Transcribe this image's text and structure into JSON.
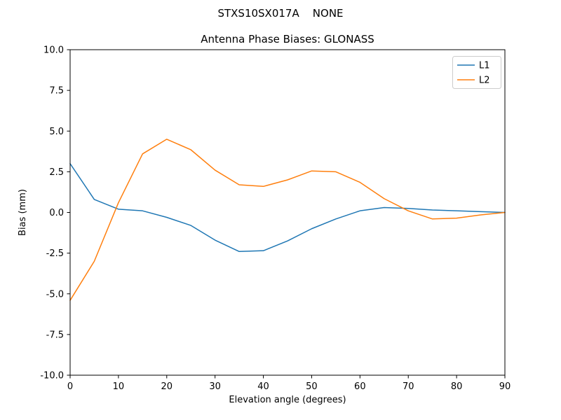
{
  "chart_data": {
    "type": "line",
    "suptitle": "STXS10SX017A    NONE",
    "title": "Antenna Phase Biases: GLONASS",
    "xlabel": "Elevation angle (degrees)",
    "ylabel": "Bias (mm)",
    "xlim": [
      0,
      90
    ],
    "ylim": [
      -10,
      10
    ],
    "xticks": [
      0,
      10,
      20,
      30,
      40,
      50,
      60,
      70,
      80,
      90
    ],
    "xtick_labels": [
      "0",
      "10",
      "20",
      "30",
      "40",
      "50",
      "60",
      "70",
      "80",
      "90"
    ],
    "yticks": [
      -10,
      -7.5,
      -5,
      -2.5,
      0,
      2.5,
      5,
      7.5,
      10
    ],
    "ytick_labels": [
      "-10.0",
      "-7.5",
      "-5.0",
      "-2.5",
      "0.0",
      "2.5",
      "5.0",
      "7.5",
      "10.0"
    ],
    "grid": false,
    "legend_position": "upper right",
    "x": [
      0,
      5,
      10,
      15,
      20,
      25,
      30,
      35,
      40,
      45,
      50,
      55,
      60,
      65,
      70,
      75,
      80,
      85,
      90
    ],
    "series": [
      {
        "name": "L1",
        "color": "#1f77b4",
        "values": [
          3.0,
          0.8,
          0.2,
          0.1,
          -0.3,
          -0.8,
          -1.7,
          -2.4,
          -2.35,
          -1.75,
          -1.0,
          -0.4,
          0.1,
          0.3,
          0.25,
          0.15,
          0.1,
          0.05,
          0.0
        ]
      },
      {
        "name": "L2",
        "color": "#ff7f0e",
        "values": [
          -5.4,
          -3.0,
          0.6,
          3.6,
          4.5,
          3.85,
          2.6,
          1.7,
          1.6,
          2.0,
          2.55,
          2.5,
          1.85,
          0.85,
          0.1,
          -0.4,
          -0.35,
          -0.15,
          0.0
        ]
      }
    ]
  }
}
